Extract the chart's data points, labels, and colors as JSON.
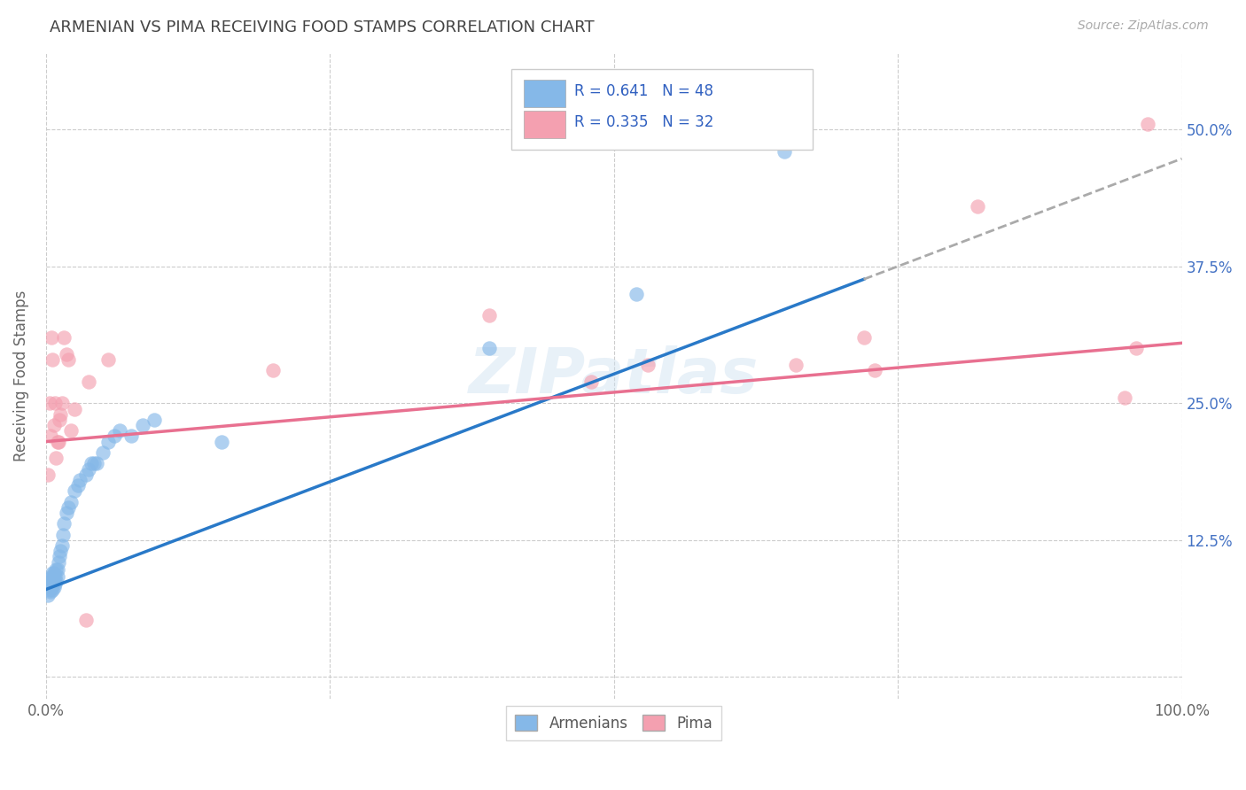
{
  "title": "ARMENIAN VS PIMA RECEIVING FOOD STAMPS CORRELATION CHART",
  "source": "Source: ZipAtlas.com",
  "ylabel": "Receiving Food Stamps",
  "xlim": [
    0.0,
    1.0
  ],
  "ylim": [
    -0.02,
    0.57
  ],
  "xticks": [
    0.0,
    0.25,
    0.5,
    0.75,
    1.0
  ],
  "xticklabels": [
    "0.0%",
    "",
    "",
    "",
    "100.0%"
  ],
  "yticks": [
    0.0,
    0.125,
    0.25,
    0.375,
    0.5
  ],
  "yticklabels_right": [
    "",
    "12.5%",
    "25.0%",
    "37.5%",
    "50.0%"
  ],
  "armenian_color": "#85b8e8",
  "pima_color": "#f4a0b0",
  "trend_armenian_color": "#2979c8",
  "trend_pima_color": "#e87090",
  "trend_armenian_extend_color": "#aaaaaa",
  "watermark": "ZIPatlas",
  "R_armenian": 0.641,
  "N_armenian": 48,
  "R_pima": 0.335,
  "N_pima": 32,
  "armenian_x": [
    0.002,
    0.003,
    0.003,
    0.004,
    0.004,
    0.005,
    0.005,
    0.005,
    0.006,
    0.006,
    0.006,
    0.007,
    0.007,
    0.007,
    0.008,
    0.008,
    0.009,
    0.009,
    0.01,
    0.01,
    0.011,
    0.012,
    0.013,
    0.014,
    0.015,
    0.016,
    0.018,
    0.02,
    0.022,
    0.025,
    0.028,
    0.03,
    0.035,
    0.038,
    0.04,
    0.042,
    0.045,
    0.05,
    0.055,
    0.06,
    0.065,
    0.075,
    0.085,
    0.095,
    0.155,
    0.39,
    0.52,
    0.65
  ],
  "armenian_y": [
    0.075,
    0.08,
    0.085,
    0.078,
    0.09,
    0.082,
    0.088,
    0.092,
    0.08,
    0.085,
    0.095,
    0.082,
    0.088,
    0.095,
    0.085,
    0.092,
    0.088,
    0.098,
    0.092,
    0.098,
    0.105,
    0.11,
    0.115,
    0.12,
    0.13,
    0.14,
    0.15,
    0.155,
    0.16,
    0.17,
    0.175,
    0.18,
    0.185,
    0.19,
    0.195,
    0.195,
    0.195,
    0.205,
    0.215,
    0.22,
    0.225,
    0.22,
    0.23,
    0.235,
    0.215,
    0.3,
    0.35,
    0.48
  ],
  "pima_x": [
    0.002,
    0.003,
    0.004,
    0.005,
    0.006,
    0.007,
    0.008,
    0.009,
    0.01,
    0.011,
    0.012,
    0.013,
    0.014,
    0.016,
    0.018,
    0.02,
    0.022,
    0.025,
    0.035,
    0.038,
    0.055,
    0.2,
    0.39,
    0.48,
    0.53,
    0.66,
    0.72,
    0.73,
    0.82,
    0.95,
    0.96,
    0.97
  ],
  "pima_y": [
    0.185,
    0.25,
    0.22,
    0.31,
    0.29,
    0.23,
    0.25,
    0.2,
    0.215,
    0.215,
    0.235,
    0.24,
    0.25,
    0.31,
    0.295,
    0.29,
    0.225,
    0.245,
    0.052,
    0.27,
    0.29,
    0.28,
    0.33,
    0.27,
    0.285,
    0.285,
    0.31,
    0.28,
    0.43,
    0.255,
    0.3,
    0.505
  ]
}
